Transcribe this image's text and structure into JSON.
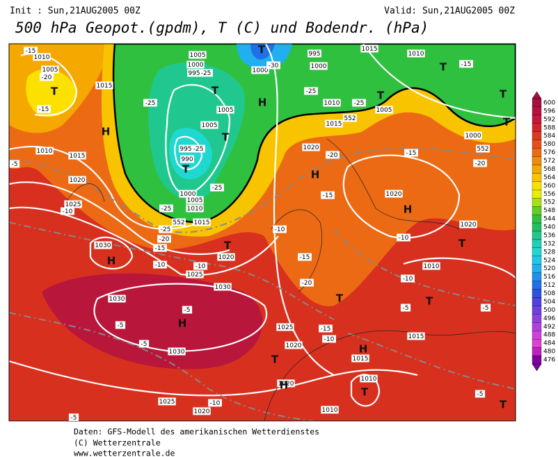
{
  "header": {
    "init": "Init : Sun,21AUG2005 00Z",
    "valid": "Valid: Sun,21AUG2005 00Z",
    "title": "500 hPa Geopot.(gpdm), T (C) und Bodendr. (hPa)"
  },
  "footer": [
    "Daten: GFS-Modell des amerikanischen Wetterdienstes",
    "(C) Wetterzentrale",
    "www.wetterzentrale.de"
  ],
  "colorbar": {
    "values": [
      600,
      596,
      592,
      588,
      584,
      580,
      576,
      572,
      568,
      564,
      560,
      556,
      552,
      548,
      544,
      540,
      536,
      532,
      528,
      524,
      520,
      516,
      512,
      508,
      504,
      500,
      496,
      492,
      488,
      484,
      480,
      476
    ],
    "colors": [
      "#a5103e",
      "#b8123c",
      "#c8163a",
      "#d4222a",
      "#dc3a1e",
      "#e4521a",
      "#ec6a14",
      "#f08c0c",
      "#f5a800",
      "#f8c400",
      "#fce000",
      "#e4f000",
      "#a8e018",
      "#60d020",
      "#30c040",
      "#20c060",
      "#20c890",
      "#20d0b0",
      "#20d8d0",
      "#20c8e8",
      "#20b0f0",
      "#2090f0",
      "#2070e8",
      "#3050e0",
      "#5040e0",
      "#7040e0",
      "#9040e0",
      "#b040e0",
      "#d040e0",
      "#e040d0",
      "#c020c0",
      "#8000a0"
    ]
  },
  "map_labels": [
    "-15",
    "1010",
    "1005",
    "-20",
    "T",
    "-15",
    "H",
    "1015",
    "1010",
    "1015",
    "-5",
    "1020",
    "1025",
    "-10",
    "1030",
    "H",
    "1030",
    "-5",
    "H",
    "-5",
    "-5",
    "1030",
    "1025",
    "-10",
    "1020",
    "-5",
    "1030",
    "1025",
    "-10",
    "T",
    "1020",
    "-10",
    "-15",
    "-20",
    "-25",
    "1015",
    "552",
    "-25",
    "1010",
    "1005",
    "1000",
    "-25",
    "T",
    "990",
    "995",
    "-25",
    "T",
    "1005",
    "1005",
    "T",
    "-25",
    "995",
    "1000",
    "1005",
    "-25",
    "T",
    "1000",
    "-30",
    "995",
    "1000",
    "H",
    "-25",
    "1010",
    "-25",
    "T",
    "1005",
    "552",
    "1015",
    "1020",
    "-20",
    "H",
    "-15",
    "-10",
    "-15",
    "-20",
    "T",
    "-15",
    "-10",
    "1025",
    "1020",
    "T",
    "H",
    "1015",
    "1020",
    "H",
    "1010",
    "T",
    "1010",
    "-5",
    "T",
    "-5",
    "T",
    "-5",
    "1015",
    "-10",
    "1010",
    "T",
    "1020",
    "-10",
    "H",
    "1020",
    "-15",
    "-20",
    "552",
    "1000",
    "T",
    "T",
    "-15",
    "T",
    "1010",
    "1015"
  ]
}
